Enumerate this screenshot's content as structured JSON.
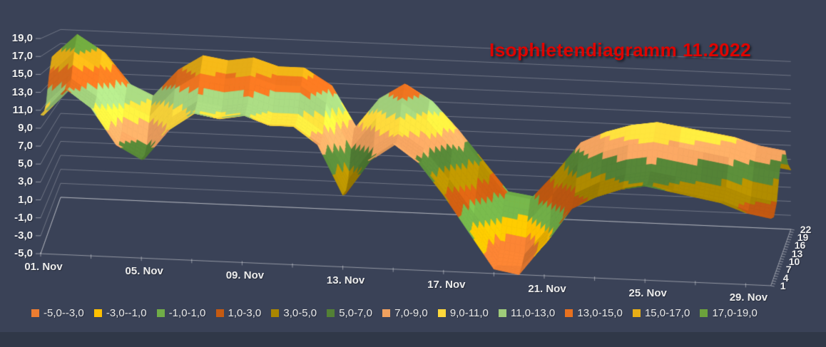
{
  "title": {
    "text": "Isophletendiagramm 11.2022",
    "color": "#DE0400"
  },
  "colors": {
    "background": "#3A4257",
    "bottom_strip": "#303848",
    "gridline": "rgba(255,255,255,0.27)",
    "axis_line": "rgba(255,255,255,0.45)",
    "label_text": "#F2F2F2"
  },
  "chart_data": {
    "type": "heatmap",
    "subtype": "3d-surface-isopleth",
    "title": "Isophletendiagramm 11.2022",
    "xlabel": "",
    "ylabel": "",
    "value_axis": {
      "min": -5,
      "max": 19,
      "step": 2,
      "labels": [
        "19,0",
        "17,0",
        "15,0",
        "13,0",
        "11,0",
        "9,0",
        "7,0",
        "5,0",
        "3,0",
        "1,0",
        "-1,0",
        "-3,0",
        "-5,0"
      ]
    },
    "category_axis": {
      "unit": "day of November 2022",
      "tick_labels": [
        {
          "day": 1,
          "label": "01. Nov"
        },
        {
          "day": 5,
          "label": "05. Nov"
        },
        {
          "day": 9,
          "label": "09. Nov"
        },
        {
          "day": 13,
          "label": "13. Nov"
        },
        {
          "day": 17,
          "label": "17. Nov"
        },
        {
          "day": 21,
          "label": "21. Nov"
        },
        {
          "day": 25,
          "label": "25. Nov"
        },
        {
          "day": 29,
          "label": "29. Nov"
        }
      ]
    },
    "depth_axis": {
      "unit": "hour of day",
      "hours": [
        1,
        4,
        7,
        10,
        13,
        16,
        19,
        22
      ],
      "labels_front_to_back": [
        "1",
        "4",
        "7",
        "10",
        "13",
        "16",
        "19",
        "22"
      ]
    },
    "bands": [
      {
        "label": "-5,0--3,0",
        "min": -5,
        "max": -3,
        "color": "#ED7D31"
      },
      {
        "label": "-3,0--1,0",
        "min": -3,
        "max": -1,
        "color": "#FFC000"
      },
      {
        "label": "-1,0-1,0",
        "min": -1,
        "max": 1,
        "color": "#70AD47"
      },
      {
        "label": "1,0-3,0",
        "min": 1,
        "max": 3,
        "color": "#C55A11"
      },
      {
        "label": "3,0-5,0",
        "min": 3,
        "max": 5,
        "color": "#A98600"
      },
      {
        "label": "5,0-7,0",
        "min": 5,
        "max": 7,
        "color": "#538135"
      },
      {
        "label": "7,0-9,0",
        "min": 7,
        "max": 9,
        "color": "#F0A15F"
      },
      {
        "label": "9,0-11,0",
        "min": 9,
        "max": 11,
        "color": "#FFD93B"
      },
      {
        "label": "11,0-13,0",
        "min": 11,
        "max": 13,
        "color": "#9FCC7A"
      },
      {
        "label": "13,0-15,0",
        "min": 13,
        "max": 15,
        "color": "#E8711F"
      },
      {
        "label": "15,0-17,0",
        "min": 15,
        "max": 17,
        "color": "#E7AE16"
      },
      {
        "label": "17,0-19,0",
        "min": 17,
        "max": 19,
        "color": "#6CA23C"
      }
    ],
    "days": [
      1,
      2,
      3,
      4,
      5,
      6,
      7,
      8,
      9,
      10,
      11,
      12,
      13,
      14,
      15,
      16,
      17,
      18,
      19,
      20,
      21,
      22,
      23,
      24,
      25,
      26,
      27,
      28,
      29,
      30
    ],
    "row_hours": [
      1,
      4,
      7,
      10,
      13,
      16,
      19,
      22
    ],
    "values": [
      [
        10.5,
        13.5,
        11.5,
        7.5,
        6,
        9.5,
        11.5,
        11,
        11.5,
        10.5,
        10.5,
        8.5,
        3,
        7,
        9,
        7,
        3.5,
        -0.5,
        -4.5,
        -5,
        -1.5,
        2.5,
        4,
        5,
        5.5,
        5,
        4.5,
        4,
        3,
        2.5
      ],
      [
        10,
        13,
        11,
        7,
        5.5,
        9,
        11,
        10.5,
        11,
        10,
        10,
        8,
        2.5,
        6.5,
        8.5,
        6.5,
        3,
        -1,
        -5,
        -5,
        -2,
        2,
        3.5,
        4.5,
        5,
        4.5,
        4,
        3.5,
        2.5,
        2
      ],
      [
        11,
        14,
        12,
        8,
        6.5,
        10,
        12,
        11.5,
        12,
        11,
        11,
        9,
        3.5,
        7.5,
        9.5,
        7.5,
        4,
        0,
        -4,
        -4.5,
        -1,
        3,
        4.5,
        5.5,
        6,
        5.5,
        5,
        4.5,
        3.5,
        3
      ],
      [
        14,
        17,
        15,
        11,
        9.5,
        13,
        15,
        14.5,
        15,
        14,
        14,
        12,
        6.5,
        10.5,
        12.5,
        10.5,
        7,
        3,
        -1,
        -1.5,
        2,
        6,
        7.5,
        8.5,
        9,
        8.5,
        8,
        7.5,
        6.5,
        6
      ],
      [
        16,
        19,
        17,
        13,
        11.5,
        15,
        17,
        16.5,
        17,
        16,
        16,
        14,
        8.5,
        12.5,
        14.5,
        12.5,
        9,
        5,
        1,
        0.5,
        4,
        8,
        9.5,
        10.5,
        11,
        10.5,
        10,
        9.5,
        8.5,
        8
      ],
      [
        15.5,
        18.5,
        16.5,
        12.5,
        11,
        14.5,
        16.5,
        16,
        16.5,
        15.5,
        15.5,
        13.5,
        8,
        12,
        14,
        12,
        8.5,
        4.5,
        0.5,
        0,
        3.5,
        7.5,
        9,
        10,
        10.5,
        10,
        9.5,
        9,
        8,
        7.5
      ],
      [
        13,
        16,
        14,
        10,
        8.5,
        12,
        14,
        13.5,
        14,
        13,
        13,
        11,
        5.5,
        9.5,
        11.5,
        9.5,
        6,
        2,
        -2,
        -2.5,
        1,
        5,
        6.5,
        7.5,
        8,
        7.5,
        7,
        6.5,
        5.5,
        5
      ],
      [
        11.5,
        14.5,
        12.5,
        8.5,
        7,
        10.5,
        12.5,
        12,
        12.5,
        11.5,
        11.5,
        9.5,
        4,
        8,
        10,
        8,
        4.5,
        0.5,
        -3.5,
        -4,
        -0.5,
        3.5,
        5,
        6,
        6.5,
        6,
        5.5,
        5,
        4,
        3.5
      ]
    ],
    "legend_position": "bottom",
    "grid": true
  },
  "legend": {
    "items": [
      "-5,0--3,0",
      "-3,0--1,0",
      "-1,0-1,0",
      "1,0-3,0",
      "3,0-5,0",
      "5,0-7,0",
      "7,0-9,0",
      "9,0-11,0",
      "11,0-13,0",
      "13,0-15,0",
      "15,0-17,0",
      "17,0-19,0"
    ]
  }
}
